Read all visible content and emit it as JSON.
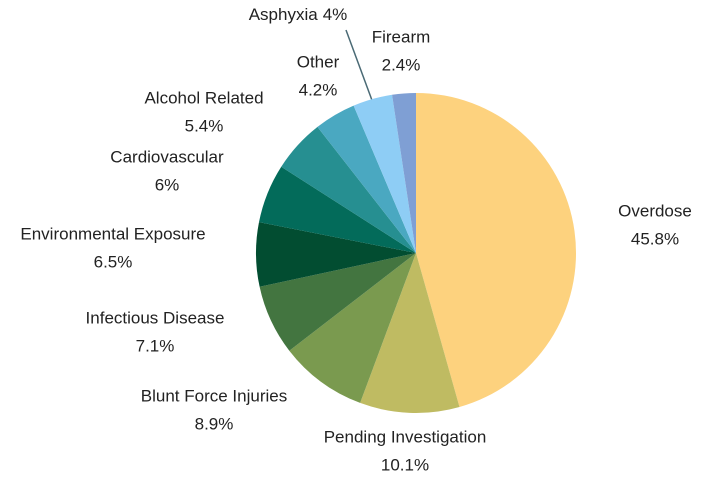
{
  "chart_data": {
    "type": "pie",
    "categories": [
      "Overdose",
      "Pending Investigation",
      "Blunt Force Injuries",
      "Infectious Disease",
      "Environmental Exposure",
      "Cardiovascular",
      "Alcohol Related",
      "Other",
      "Asphyxia",
      "Firearm"
    ],
    "values": [
      45.8,
      10.1,
      8.9,
      7.1,
      6.5,
      6,
      5.4,
      4.2,
      4,
      2.4
    ],
    "value_labels": [
      "45.8%",
      "10.1%",
      "8.9%",
      "7.1%",
      "6.5%",
      "6%",
      "5.4%",
      "4.2%",
      "4%",
      "2.4%"
    ],
    "colors": [
      "#fdd27e",
      "#bfbb62",
      "#7a9a4f",
      "#437540",
      "#024d31",
      "#036b5a",
      "#268f91",
      "#4aa8c1",
      "#8ecdf5",
      "#7f9fd4"
    ]
  }
}
